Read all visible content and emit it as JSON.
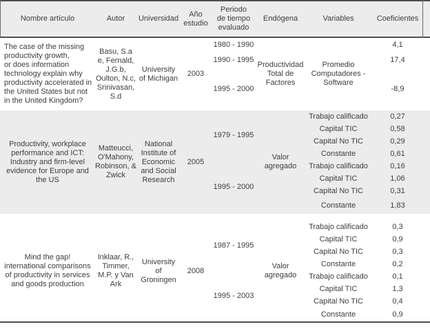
{
  "header": {
    "columns": [
      "Nombre artículo",
      "Autor",
      "Universidad",
      "Año\nestudio",
      "Periodo\nde tiempo\nevaluado",
      "Endógena",
      "Variables",
      "Coeficientes"
    ]
  },
  "studies": [
    {
      "title": "The case of the missing\nproductivity growth,\nor does information\ntechnology explain why\nproductivity accelerated in\nthe United States but not\nin the United Kingdom?",
      "author": "Basu, S.a\ne, Fernald,\nJ.G.b,\nOulton, N.c,\nSrinivasan,\nS.d",
      "university": "University\nof Michigan",
      "year": "2003",
      "endogenous": "Productividad\nTotal de\nFactores",
      "periods": [
        "1980 - 1990",
        "1990 - 1995",
        "1995 - 2000"
      ],
      "variables": [
        "Promedio\nComputadores -\nSoftware"
      ],
      "coefficients": [
        "4,1",
        "17,4",
        "-8,9"
      ]
    },
    {
      "title": "Productivity, workplace\nperformance and ICT:\nIndustry and firm-level\nevidence for Europe and\nthe US",
      "author": "Matteucci,\nO'Mahony,\nRobinson, &\nZwick",
      "university": "National\nInstitute of\nEconomic\nand Social\nResearch",
      "year": "2005",
      "endogenous": "Valor\nagregado",
      "periods": [
        "1979 - 1995",
        "1995 - 2000"
      ],
      "variables": [
        "Trabajo calificado",
        "Capital TIC",
        "Capital No TIC",
        "Constante",
        "Trabajo calificado",
        "Capital TIC",
        "Capital No TIC",
        "Constante"
      ],
      "coefficients": [
        "0,27",
        "0,58",
        "0,29",
        "0,61",
        "0,16",
        "1,06",
        "0,31",
        "1,83"
      ]
    },
    {
      "title": "Mind the gap!\ninternational comparisons\nof productivity in services\nand goods production",
      "author": "Inklaar, R.,\nTimmer,\nM.P. y Van\nArk",
      "university": "University\nof\nGroningen",
      "year": "2008",
      "endogenous": "Valor\nagregado",
      "periods": [
        "1987 - 1995",
        "1995 - 2003"
      ],
      "variables": [
        "Trabajo calificado",
        "Capital TIC",
        "Capital No TIC",
        "Constante",
        "Trabajo calificado",
        "Capital TIC",
        "Capital No TIC",
        "Constante"
      ],
      "coefficients": [
        "0,3",
        "0,9",
        "0,3",
        "0,2",
        "0,1",
        "1,3",
        "0,4",
        "0,9"
      ]
    }
  ]
}
